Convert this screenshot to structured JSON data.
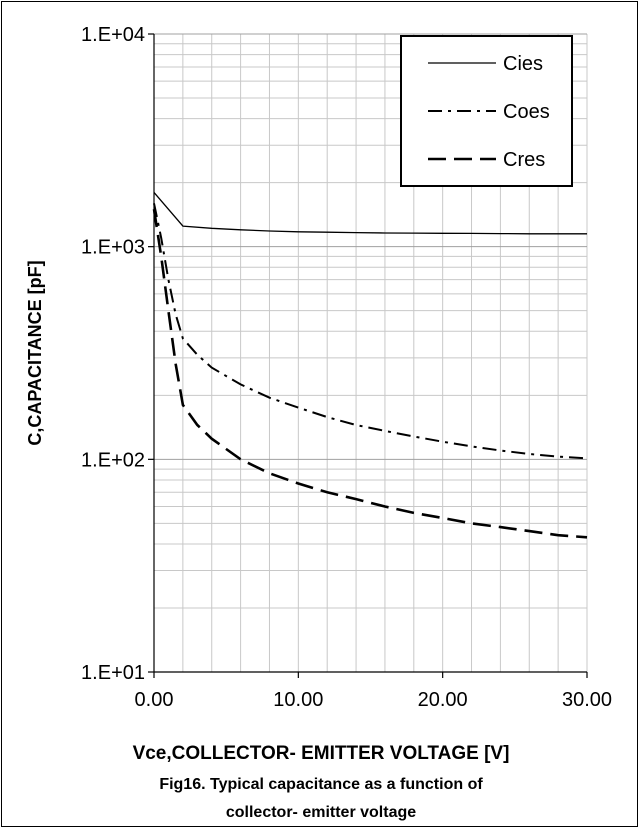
{
  "chart_data": {
    "type": "line",
    "xlabel": "Vce,COLLECTOR- EMITTER VOLTAGE [V]",
    "ylabel": "C,CAPACITANCE [pF]",
    "caption_lines": [
      "Fig16.  Typical capacitance as a function of",
      "collector- emitter voltage"
    ],
    "xlim": [
      0,
      30
    ],
    "ylim": [
      10,
      10000
    ],
    "yscale": "log",
    "x_tick_labels": [
      "0.00",
      "10.00",
      "20.00",
      "30.00"
    ],
    "x_tick_values": [
      0,
      10,
      20,
      30
    ],
    "y_tick_labels": [
      "1.E+01",
      "1.E+02",
      "1.E+03",
      "1.E+04"
    ],
    "y_tick_values": [
      10,
      100,
      1000,
      10000
    ],
    "grid": true,
    "legend_position": "top-right",
    "series": [
      {
        "name": "Cies",
        "style": "solid",
        "x": [
          0,
          2,
          4,
          6,
          8,
          10,
          12,
          14,
          16,
          18,
          20,
          22,
          24,
          26,
          28,
          30
        ],
        "y": [
          1800,
          1250,
          1220,
          1200,
          1185,
          1175,
          1170,
          1165,
          1160,
          1158,
          1156,
          1154,
          1152,
          1150,
          1150,
          1150
        ]
      },
      {
        "name": "Coes",
        "style": "dashdot",
        "x": [
          0,
          0.5,
          1,
          1.5,
          2,
          3,
          4,
          6,
          8,
          10,
          12,
          14,
          16,
          18,
          20,
          22,
          24,
          26,
          28,
          30
        ],
        "y": [
          1600,
          1100,
          700,
          480,
          370,
          310,
          270,
          225,
          195,
          175,
          158,
          145,
          136,
          128,
          121,
          115,
          110,
          106,
          103,
          101
        ]
      },
      {
        "name": "Cres",
        "style": "dashed",
        "x": [
          0,
          0.5,
          1,
          1.5,
          2,
          3,
          4,
          6,
          8,
          10,
          12,
          14,
          16,
          18,
          20,
          22,
          24,
          26,
          28,
          30
        ],
        "y": [
          1500,
          900,
          500,
          280,
          180,
          145,
          125,
          100,
          86,
          77,
          70,
          65,
          60,
          56,
          53,
          50,
          48,
          46,
          44,
          43
        ]
      }
    ]
  }
}
